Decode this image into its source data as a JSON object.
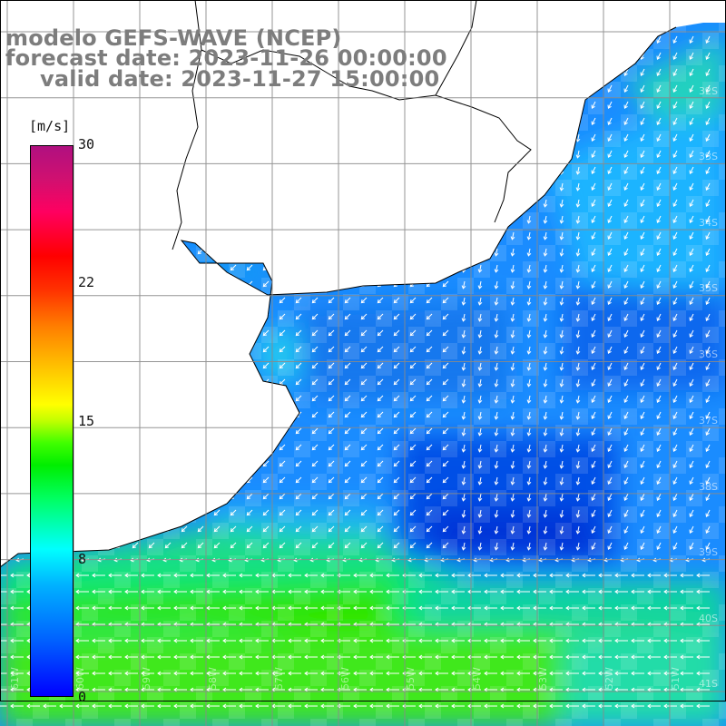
{
  "title": {
    "line1": "modelo GEFS-WAVE (NCEP)",
    "line2": "forecast date: 2023-11-26 00:00:00",
    "line3": "valid date: 2023-11-27 15:00:00"
  },
  "colorbar": {
    "unit": "[m/s]",
    "range": [
      0,
      30
    ],
    "ticks": [
      "0",
      "8",
      "15",
      "22",
      "30"
    ],
    "colors": {
      "low": "#0000ff",
      "mid": "#00ffff",
      "green": "#00ee00",
      "yellow": "#ffff00",
      "red": "#ff0000",
      "high": "#b01080"
    }
  },
  "map": {
    "lat_labels": [
      "32S",
      "33S",
      "34S",
      "35S",
      "36S",
      "37S",
      "38S",
      "39S",
      "40S",
      "41S"
    ],
    "lon_labels": [
      "61W",
      "60W",
      "59W",
      "58W",
      "57W",
      "56W",
      "55W",
      "54W",
      "53W",
      "52W",
      "51W"
    ],
    "land_color": "#ffffff",
    "grid_color": "#8a8a8a",
    "arrow_color": "#ffffff"
  }
}
